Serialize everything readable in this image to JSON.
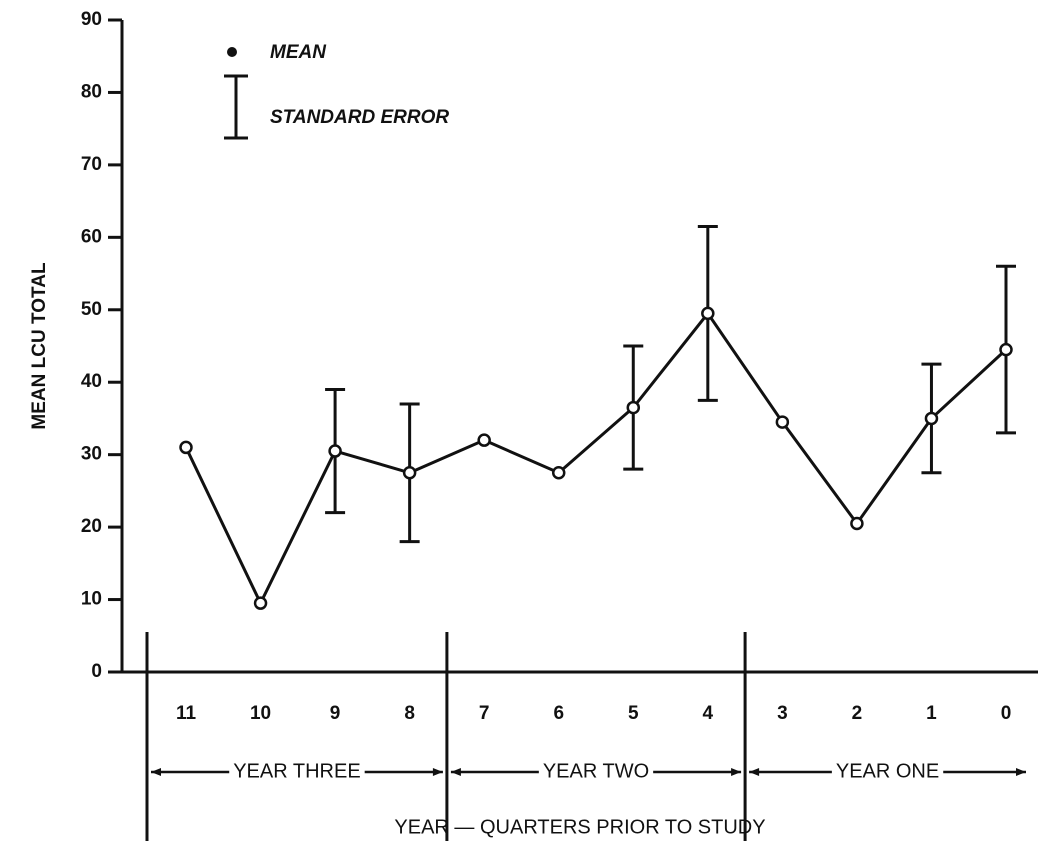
{
  "chart_data": {
    "type": "line",
    "x_label": "YEAR — QUARTERS PRIOR TO STUDY",
    "y_label": "MEAN LCU TOTAL",
    "categories": [
      "11",
      "10",
      "9",
      "8",
      "7",
      "6",
      "5",
      "4",
      "3",
      "2",
      "1",
      "0"
    ],
    "groups": [
      "YEAR THREE",
      "YEAR TWO",
      "YEAR ONE"
    ],
    "series": [
      {
        "name": "MEAN",
        "color": "#111111",
        "values": [
          31,
          9.5,
          30.5,
          27.5,
          32,
          27.5,
          36.5,
          49.5,
          34.5,
          20.5,
          35,
          44.5
        ],
        "errors": [
          null,
          null,
          8.5,
          9.5,
          null,
          null,
          8.5,
          12,
          null,
          null,
          7.5,
          11.5
        ]
      }
    ],
    "error_legend": "STANDARD ERROR",
    "ylim": [
      0,
      90
    ],
    "yticks": [
      0,
      10,
      20,
      30,
      40,
      50,
      60,
      70,
      80,
      90
    ]
  }
}
